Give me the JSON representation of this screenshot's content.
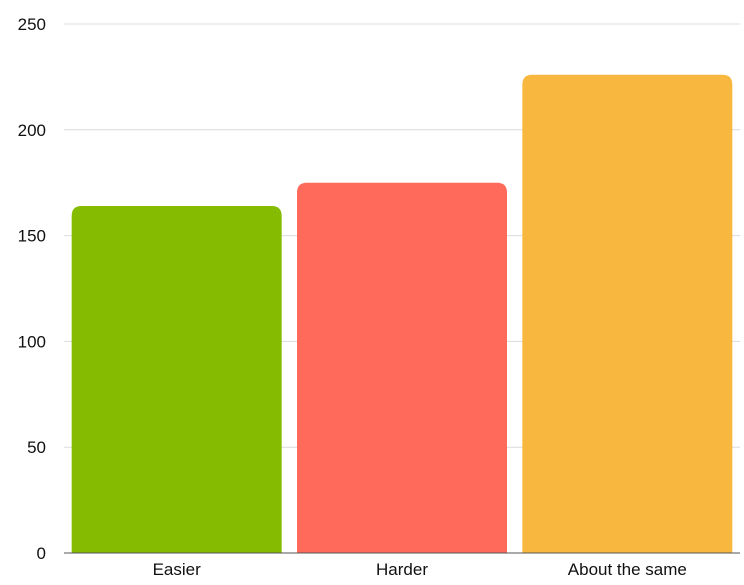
{
  "chart_data": {
    "type": "bar",
    "categories": [
      "Easier",
      "Harder",
      "About the same"
    ],
    "values": [
      164,
      175,
      226
    ],
    "colors": [
      "#85BB00",
      "#FF6A5A",
      "#F8B83F"
    ],
    "ylim": [
      0,
      250
    ],
    "yticks": [
      0,
      50,
      100,
      150,
      200,
      250
    ],
    "grid": true,
    "title": "",
    "xlabel": "",
    "ylabel": ""
  }
}
